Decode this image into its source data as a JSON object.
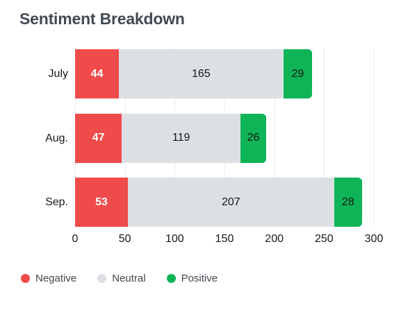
{
  "header": {
    "title": "Sentiment Breakdown"
  },
  "chart_data": {
    "type": "bar",
    "orientation": "horizontal",
    "stacked": true,
    "title": "Sentiment Breakdown",
    "categories": [
      "July",
      "Aug.",
      "Sep."
    ],
    "series": [
      {
        "name": "Negative",
        "color": "#F04B4B",
        "label_on_dark": true,
        "values": [
          44,
          47,
          53
        ]
      },
      {
        "name": "Neutral",
        "color": "#DCE0E4",
        "label_on_dark": false,
        "values": [
          165,
          119,
          207
        ]
      },
      {
        "name": "Positive",
        "color": "#0FB457",
        "label_on_dark": false,
        "values": [
          29,
          26,
          28
        ]
      }
    ],
    "x_ticks": [
      0,
      50,
      100,
      150,
      200,
      250,
      300
    ],
    "xlim": [
      0,
      300
    ],
    "grid": "vertical",
    "legend_position": "bottom",
    "colors": {
      "gridline": "#EBECED",
      "title_text": "#424A53",
      "axis_text": "#15181B",
      "legend_text": "#40474F"
    }
  }
}
